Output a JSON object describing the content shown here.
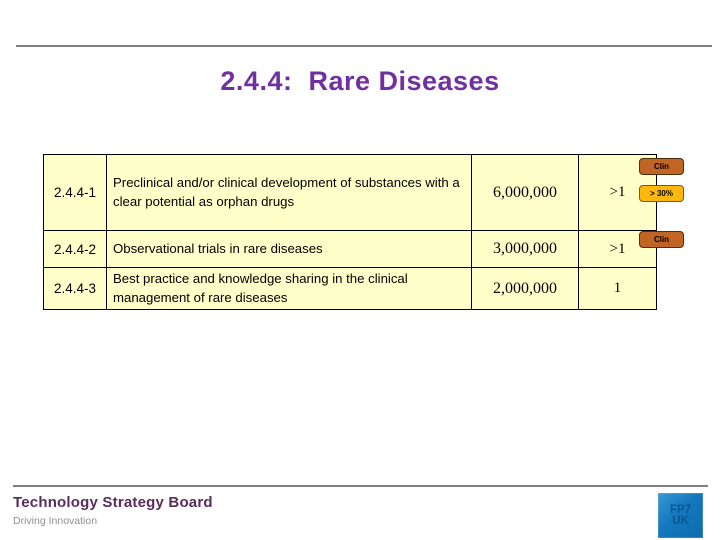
{
  "slide": {
    "title": "2.4.4:  Rare Diseases"
  },
  "table": {
    "rows": [
      {
        "id": "2.4.4-1",
        "description": "Preclinical and/or clinical development of substances with a clear potential as orphan drugs",
        "amount": "6,000,000",
        "count": ">1",
        "badges": [
          "Clin",
          "> 30%"
        ]
      },
      {
        "id": "2.4.4-2",
        "description": "Observational trials in rare diseases",
        "amount": "3,000,000",
        "count": ">1",
        "badges": [
          "Clin"
        ]
      },
      {
        "id": "2.4.4-3",
        "description": "Best practice and knowledge sharing in the clinical management of rare diseases",
        "amount": "2,000,000",
        "count": "1",
        "badges": []
      }
    ]
  },
  "footer": {
    "org": "Technology Strategy Board",
    "tagline": "Driving Innovation",
    "logo_line1": "FP7",
    "logo_line2": "UK"
  },
  "colors": {
    "title_purple": "#7030A0",
    "cell_background": "#FFFFC9",
    "badge_clin": "#C06524",
    "badge_percent": "#FFB60D",
    "divider_gray": "#7F7F7F",
    "footer_purple": "#5B2A5E",
    "logo_blue": "#1478BE"
  }
}
